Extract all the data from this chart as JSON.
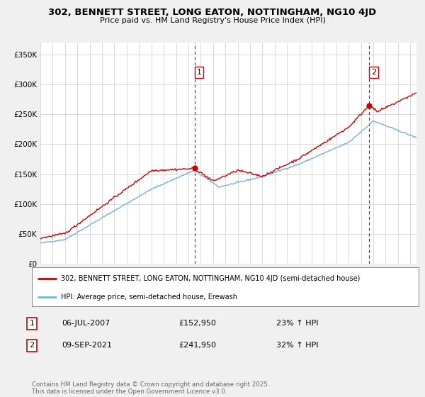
{
  "title": "302, BENNETT STREET, LONG EATON, NOTTINGHAM, NG10 4JD",
  "subtitle": "Price paid vs. HM Land Registry's House Price Index (HPI)",
  "red_label": "302, BENNETT STREET, LONG EATON, NOTTINGHAM, NG10 4JD (semi-detached house)",
  "blue_label": "HPI: Average price, semi-detached house, Erewash",
  "point1_date": "06-JUL-2007",
  "point1_price": 152950,
  "point1_hpi": "23% ↑ HPI",
  "point2_date": "09-SEP-2021",
  "point2_price": 241950,
  "point2_hpi": "32% ↑ HPI",
  "footnote": "Contains HM Land Registry data © Crown copyright and database right 2025.\nThis data is licensed under the Open Government Licence v3.0.",
  "ylim": [
    0,
    370000
  ],
  "yticks": [
    0,
    50000,
    100000,
    150000,
    200000,
    250000,
    300000,
    350000
  ],
  "background_color": "#f0f0f0",
  "plot_bg_color": "#ffffff",
  "red_color": "#cc0000",
  "blue_color": "#7ab0d4",
  "vline_color": "#cc0000",
  "point1_x": 2007.51,
  "point2_x": 2021.68,
  "xmin": 1995,
  "xmax": 2025.5
}
